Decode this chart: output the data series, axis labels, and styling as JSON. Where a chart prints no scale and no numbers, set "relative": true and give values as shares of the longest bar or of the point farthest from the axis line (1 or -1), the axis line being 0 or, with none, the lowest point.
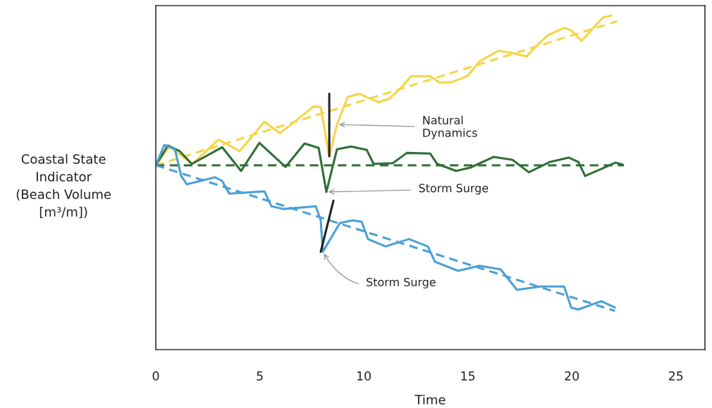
{
  "chart_data": {
    "type": "line",
    "xlabel": "Time",
    "ylabel": "Coastal State\nIndicator\n(Beach Volume\n[m³/m])",
    "relative": true,
    "xlim": [
      0,
      26.4
    ],
    "xticks": [
      0,
      5,
      10,
      15,
      20,
      25
    ],
    "tick_labels": "x",
    "grid": false,
    "marker": "none",
    "annotations": [
      {
        "text": "Natural\nDynamics",
        "x": 8.71,
        "y": 0.674
      },
      {
        "text": "Storm Surge",
        "x": 8.2,
        "y": 0.472
      },
      {
        "text": "Storm Surge",
        "x": 8.03,
        "y": 0.293
      }
    ],
    "series": [
      {
        "color": "#f5d547",
        "line_style": "dashed",
        "x": [
          0,
          22.17
        ],
        "values": [
          0.552,
          0.983
        ]
      },
      {
        "color": "#2f6f36",
        "line_style": "dashed",
        "x": [
          0,
          22.51
        ],
        "values": [
          0.552,
          0.552
        ]
      },
      {
        "color": "#4aa0d5",
        "line_style": "dashed",
        "x": [
          0,
          22.07
        ],
        "values": [
          0.552,
          0.116
        ]
      },
      {
        "color": "#f5d547",
        "line_style": "solid",
        "x": [
          0,
          0.64,
          1.76,
          3.02,
          4.03,
          5.22,
          5.97,
          7.59,
          7.93,
          8.34,
          8.71,
          9.22,
          9.8,
          10.14,
          10.71,
          11.25,
          11.83,
          12.27,
          13.19,
          13.63,
          14.2,
          14.98,
          15.56,
          16.47,
          17.15,
          17.83,
          18.37,
          18.85,
          19.63,
          19.97,
          20.47,
          21.08,
          21.49,
          21.9
        ],
        "values": [
          0.552,
          0.608,
          0.556,
          0.629,
          0.594,
          0.682,
          0.648,
          0.728,
          0.726,
          0.579,
          0.674,
          0.756,
          0.766,
          0.756,
          0.741,
          0.752,
          0.787,
          0.819,
          0.819,
          0.8,
          0.8,
          0.819,
          0.863,
          0.895,
          0.888,
          0.878,
          0.914,
          0.941,
          0.964,
          0.956,
          0.924,
          0.966,
          0.994,
          1.0
        ]
      },
      {
        "color": "#2f6f36",
        "line_style": "solid",
        "x": [
          0,
          0.58,
          1.15,
          1.73,
          3.19,
          4.1,
          4.98,
          6.24,
          7.15,
          7.83,
          8.2,
          8.71,
          9.39,
          10.14,
          10.47,
          11.39,
          12.07,
          13.19,
          13.53,
          14.44,
          15.12,
          16.24,
          17.15,
          17.93,
          18.95,
          19.86,
          20.31,
          20.64,
          21.42,
          22.1,
          22.44
        ],
        "values": [
          0.552,
          0.611,
          0.594,
          0.556,
          0.606,
          0.535,
          0.619,
          0.547,
          0.617,
          0.604,
          0.472,
          0.6,
          0.608,
          0.598,
          0.556,
          0.558,
          0.589,
          0.587,
          0.556,
          0.535,
          0.545,
          0.577,
          0.568,
          0.531,
          0.562,
          0.575,
          0.562,
          0.52,
          0.541,
          0.56,
          0.554
        ]
      },
      {
        "color": "#4aa0d5",
        "line_style": "solid",
        "x": [
          0,
          0.41,
          0.92,
          1.22,
          1.49,
          2.85,
          3.19,
          3.53,
          5.22,
          5.56,
          6.14,
          7.69,
          7.93,
          8.03,
          8.85,
          9.46,
          9.9,
          10.2,
          11.05,
          12.17,
          13.08,
          13.42,
          14.54,
          15.56,
          16.58,
          17.36,
          18.51,
          19.63,
          19.97,
          20.31,
          21.42,
          22.07
        ],
        "values": [
          0.552,
          0.613,
          0.6,
          0.52,
          0.495,
          0.516,
          0.505,
          0.467,
          0.474,
          0.429,
          0.421,
          0.429,
          0.387,
          0.293,
          0.379,
          0.387,
          0.383,
          0.331,
          0.309,
          0.331,
          0.309,
          0.263,
          0.236,
          0.251,
          0.24,
          0.179,
          0.189,
          0.189,
          0.126,
          0.12,
          0.145,
          0.126
        ]
      },
      {
        "color": "#222222",
        "line_style": "solid",
        "x": [
          8.34,
          8.34
        ],
        "values": [
          0.766,
          0.579
        ]
      },
      {
        "color": "#222222",
        "line_style": "solid",
        "x": [
          8.54,
          7.93
        ],
        "values": [
          0.446,
          0.293
        ]
      }
    ]
  }
}
